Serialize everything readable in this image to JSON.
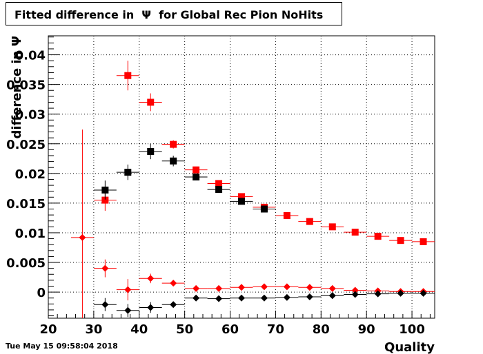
{
  "title": "Fitted difference in  Ψ  for Global Rec Pion NoHits",
  "timestamp": "Tue May 15 09:58:04 2018",
  "chart_data": {
    "type": "scatter",
    "title": "Fitted difference in  Ψ  for Global Rec Pion NoHits",
    "xlabel": "Quality",
    "ylabel": "difference in Ψ",
    "xlim": [
      20,
      105
    ],
    "ylim": [
      -0.0044,
      0.0432
    ],
    "grid": true,
    "x_ticks": [
      20,
      30,
      40,
      50,
      60,
      70,
      80,
      90,
      100
    ],
    "x_tick_labels": [
      "20",
      "30",
      "40",
      "50",
      "60",
      "70",
      "80",
      "90",
      "100"
    ],
    "y_ticks": [
      0,
      0.005,
      0.01,
      0.015,
      0.02,
      0.025,
      0.03,
      0.035,
      0.04
    ],
    "y_tick_labels": [
      "0",
      "0.005",
      "0.01",
      "0.015",
      "0.02",
      "0.025",
      "0.03",
      "0.035",
      "0.04"
    ],
    "series": [
      {
        "marker": "square",
        "color": "#ff0000",
        "x": [
          32.5,
          37.5,
          42.5,
          47.5,
          52.5,
          57.5,
          62.5,
          67.5,
          72.5,
          77.5,
          82.5,
          87.5,
          92.5,
          97.5,
          102.5
        ],
        "y": [
          0.0155,
          0.0365,
          0.032,
          0.0249,
          0.0206,
          0.0183,
          0.0161,
          0.0143,
          0.0129,
          0.0119,
          0.011,
          0.0101,
          0.0094,
          0.0087,
          0.0085
        ],
        "yerr": [
          0.0018,
          0.0025,
          0.0015,
          0.0007,
          0.0005,
          0.0004,
          0.0003,
          0.0003,
          0.0003,
          0.0003,
          0.0003,
          0.0003,
          0.0003,
          0.0003,
          0.0003
        ]
      },
      {
        "marker": "square",
        "color": "#000000",
        "x": [
          32.5,
          37.5,
          42.5,
          47.5,
          52.5,
          57.5,
          62.5,
          67.5
        ],
        "y": [
          0.0172,
          0.0202,
          0.0237,
          0.0221,
          0.0194,
          0.0173,
          0.0153,
          0.014
        ],
        "yerr": [
          0.0016,
          0.0013,
          0.0013,
          0.0009,
          0.0005,
          0.0004,
          0.0003,
          0.0003
        ]
      },
      {
        "marker": "diamond",
        "color": "#ff0000",
        "x": [
          27.5,
          32.5,
          37.5,
          42.5,
          47.5,
          52.5,
          57.5,
          62.5,
          67.5,
          72.5,
          77.5,
          82.5,
          87.5,
          92.5,
          97.5,
          102.5
        ],
        "y": [
          0.0092,
          0.004,
          0.0004,
          0.0023,
          0.0015,
          0.0006,
          0.0006,
          0.0008,
          0.0009,
          0.0009,
          0.0008,
          0.0006,
          0.0003,
          0.0002,
          0.0001,
          0.0001
        ],
        "yerr": [
          0.0182,
          0.0015,
          0.0018,
          0.0008,
          0.0004,
          0.0003,
          0.0002,
          0.0002,
          0.0002,
          0.0002,
          0.0002,
          0.0002,
          0.0002,
          0.0002,
          0.0002,
          0.0002
        ]
      },
      {
        "marker": "diamond",
        "color": "#000000",
        "x": [
          32.5,
          37.5,
          42.5,
          47.5,
          52.5,
          57.5,
          62.5,
          67.5,
          72.5,
          77.5,
          82.5,
          87.5,
          92.5,
          97.5,
          102.5
        ],
        "y": [
          -0.0021,
          -0.0031,
          -0.0026,
          -0.0021,
          -0.001,
          -0.0011,
          -0.001,
          -0.001,
          -0.0009,
          -0.0008,
          -0.0006,
          -0.0004,
          -0.0003,
          -0.0002,
          -0.0002
        ],
        "yerr": [
          0.0011,
          0.0011,
          0.0009,
          0.0005,
          0.0003,
          0.0002,
          0.0002,
          0.0002,
          0.0002,
          0.0002,
          0.0002,
          0.0002,
          0.0002,
          0.0002,
          0.0002
        ]
      }
    ]
  }
}
